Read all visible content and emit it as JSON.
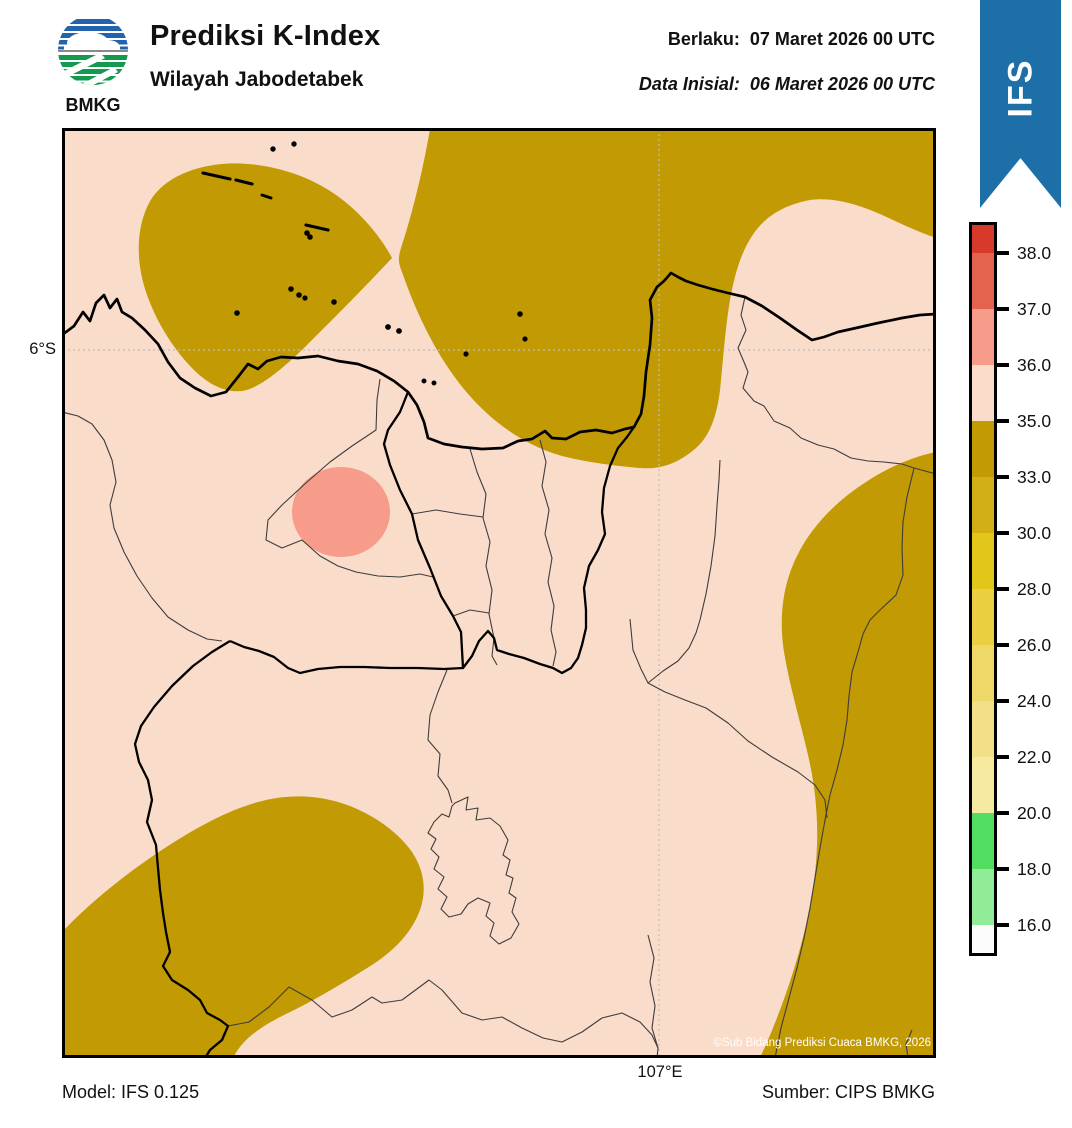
{
  "header": {
    "logo_text": "BMKG",
    "title": "Prediksi K-Index",
    "subtitle": "Wilayah Jabodetabek",
    "valid_label": "Berlaku:",
    "valid_value": "07 Maret 2026 00 UTC",
    "init_label": "Data Inisial:",
    "init_value": "06 Maret 2026 00 UTC"
  },
  "ribbon": {
    "label": "IFS",
    "color": "#1D6FA8"
  },
  "map": {
    "lat_label": "6°S",
    "lon_label": "107°E",
    "copyright": "©Sub Bidang Prediksi Cuaca BMKG, 2026",
    "colors": {
      "band_35_36_background": "#FADCCB",
      "band_33_35_gold": "#C29A04",
      "band_36_37_salmon": "#F79C8B",
      "coastline": "#000000",
      "gridline": "#BDBDBD"
    }
  },
  "colorbar": {
    "ticks": [
      "38.0",
      "37.0",
      "36.0",
      "35.0",
      "33.0",
      "30.0",
      "28.0",
      "26.0",
      "24.0",
      "22.0",
      "20.0",
      "18.0",
      "16.0"
    ],
    "segments_top_to_bottom": [
      {
        "range": "> 38",
        "color": "#D7392B"
      },
      {
        "range": "37-38",
        "color": "#E4634F"
      },
      {
        "range": "36-37",
        "color": "#F79C8B"
      },
      {
        "range": "35-36",
        "color": "#FADCCB"
      },
      {
        "range": "33-35",
        "color": "#C29A04"
      },
      {
        "range": "30-33",
        "color": "#D2AF14"
      },
      {
        "range": "28-30",
        "color": "#E2C71A"
      },
      {
        "range": "26-28",
        "color": "#E9CF41"
      },
      {
        "range": "24-26",
        "color": "#EDD868"
      },
      {
        "range": "22-24",
        "color": "#F2E088"
      },
      {
        "range": "20-22",
        "color": "#F6EAA1"
      },
      {
        "range": "18-20",
        "color": "#52DF61"
      },
      {
        "range": "16-18",
        "color": "#90EC97"
      },
      {
        "range": "< 16",
        "color": "#FCFCFC"
      }
    ]
  },
  "footer": {
    "model": "Model: IFS 0.125",
    "source": "Sumber: CIPS BMKG"
  },
  "chart_data": {
    "type": "filled_contour_map",
    "variable": "K-Index",
    "region": "Wilayah Jabodetabek",
    "levels": [
      16,
      18,
      20,
      22,
      24,
      26,
      28,
      30,
      33,
      35,
      36,
      37,
      38
    ],
    "gridlines": {
      "lat": "6°S",
      "lon": "107°E"
    },
    "visible_bands": [
      {
        "range": "35-36",
        "color": "#FADCCB",
        "areas": [
          "dominant background over most of the domain"
        ]
      },
      {
        "range": "33-35",
        "color": "#C29A04",
        "areas": [
          "northwest offshore blob with Kepulauan Seribu islands",
          "north-central offshore region along top edge",
          "large eastern region",
          "southwest/bottom-left region"
        ]
      },
      {
        "range": "36-37",
        "color": "#F79C8B",
        "areas": [
          "small circular spot west of Jakarta (around Tangerang)"
        ]
      }
    ]
  }
}
